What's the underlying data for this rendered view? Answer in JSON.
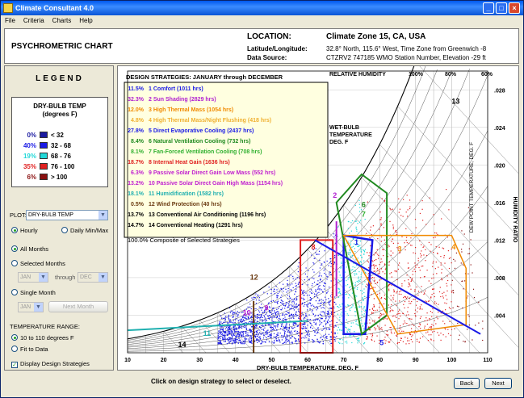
{
  "window": {
    "title": "Climate Consultant 4.0"
  },
  "menu": [
    "File",
    "Criteria",
    "Charts",
    "Help"
  ],
  "header": {
    "chart_name": "PSYCHROMETRIC CHART",
    "location_label": "LOCATION:",
    "location_value": "Climate Zone 15, CA, USA",
    "latlong_label": "Latitude/Longitude:",
    "latlong_value": "32.8° North, 115.6° West, Time Zone from Greenwich -8",
    "source_label": "Data Source:",
    "source_value": "CTZRV2      747185 WMO Station Number, Elevation -29 ft"
  },
  "legend": {
    "title": "LEGEND",
    "heading1": "DRY-BULB TEMP",
    "heading2": "(degrees F)",
    "rows": [
      {
        "pct": "0%",
        "range": "< 32",
        "color": "#1a1aa0"
      },
      {
        "pct": "40%",
        "range": "32 - 68",
        "color": "#1a1ae6"
      },
      {
        "pct": "19%",
        "range": "68 - 76",
        "color": "#22d8d8"
      },
      {
        "pct": "35%",
        "range": "76 - 100",
        "color": "#e02020"
      },
      {
        "pct": "6%",
        "range": "> 100",
        "color": "#8a1010"
      }
    ]
  },
  "controls": {
    "plot_label": "PLOT:",
    "plot_value": "DRY-BULB TEMP",
    "hourly": "Hourly",
    "daily": "Daily Min/Max",
    "all_months": "All Months",
    "selected_months": "Selected Months",
    "from_month": "JAN",
    "through": "through",
    "to_month": "DEC",
    "single_month": "Single Month",
    "single_value": "JAN",
    "next_month": "Next Month",
    "temp_range_label": "TEMPERATURE RANGE:",
    "range_opt1": "10 to 110 degrees F",
    "range_opt2": "Fit to Data",
    "display_strategies": "Display Design Strategies"
  },
  "chart": {
    "strategies_title": "DESIGN STRATEGIES:  JANUARY through DECEMBER",
    "strategies": [
      {
        "pct": "11.5%",
        "text": "1  Comfort (1011 hrs)",
        "color": "#1a1ae6"
      },
      {
        "pct": "32.3%",
        "text": "2  Sun Shading (2829 hrs)",
        "color": "#b020d0"
      },
      {
        "pct": "12.0%",
        "text": "3  High Thermal Mass (1054 hrs)",
        "color": "#f08a00"
      },
      {
        "pct": "4.8%",
        "text": "4  High Thermal Mass/Night Flushing (418 hrs)",
        "color": "#f0b030"
      },
      {
        "pct": "27.8%",
        "text": "5  Direct Evaporative Cooling (2437 hrs)",
        "color": "#1a1ae6"
      },
      {
        "pct": "8.4%",
        "text": "6  Natural Ventilation Cooling (732 hrs)",
        "color": "#208a20"
      },
      {
        "pct": "8.1%",
        "text": "7  Fan-Forced Ventilation Cooling (708 hrs)",
        "color": "#30b030"
      },
      {
        "pct": "18.7%",
        "text": "8  Internal Heat Gain (1636 hrs)",
        "color": "#e02020"
      },
      {
        "pct": "6.3%",
        "text": "9  Passive Solar Direct Gain Low Mass (552 hrs)",
        "color": "#c020d0"
      },
      {
        "pct": "13.2%",
        "text": "10 Passive Solar Direct Gain High Mass (1154 hrs)",
        "color": "#c020d0"
      },
      {
        "pct": "18.1%",
        "text": "11 Humidification (1582 hrs)",
        "color": "#20b0b0"
      },
      {
        "pct": "0.5%",
        "text": "12 Wind Protection (40 hrs)",
        "color": "#6a3a10"
      },
      {
        "pct": "13.7%",
        "text": "13 Conventional Air Conditioning (1196 hrs)",
        "color": "#000000"
      },
      {
        "pct": "14.7%",
        "text": "14 Conventional Heating (1291 hrs)",
        "color": "#000000"
      }
    ],
    "composite": "100.0% Composite of Selected Strategies",
    "rh_label": "RELATIVE HUMIDITY",
    "rh_ticks": [
      "100%",
      "80%",
      "60%"
    ],
    "wet_bulb_label": [
      "WET-BULB",
      "TEMPERATURE",
      "DEG. F"
    ],
    "x_label": "DRY-BULB TEMPERATURE, DEG. F",
    "x_ticks": [
      "10",
      "20",
      "30",
      "40",
      "50",
      "60",
      "70",
      "80",
      "90",
      "100",
      "110"
    ],
    "hr_label": "HUMIDITY RATIO",
    "dp_label": "DEW POINT TEMPERATURE, DEG. F",
    "hr_ticks": [
      ".028",
      ".024",
      ".020",
      ".016",
      ".012",
      ".008",
      ".004"
    ],
    "zone_numbers": [
      "1",
      "2",
      "3",
      "4",
      "5",
      "6",
      "7",
      "8",
      "9",
      "10",
      "11",
      "12",
      "13",
      "14"
    ]
  },
  "chart_data": {
    "type": "scatter",
    "title": "DESIGN STRATEGIES:  JANUARY through DECEMBER",
    "xlabel": "DRY-BULB TEMPERATURE, DEG. F",
    "ylabel": "HUMIDITY RATIO",
    "xlim": [
      10,
      110
    ],
    "ylim": [
      0,
      0.03
    ]
  },
  "footer": {
    "hint": "Click on design strategy to select or deselect.",
    "back": "Back",
    "next": "Next"
  }
}
